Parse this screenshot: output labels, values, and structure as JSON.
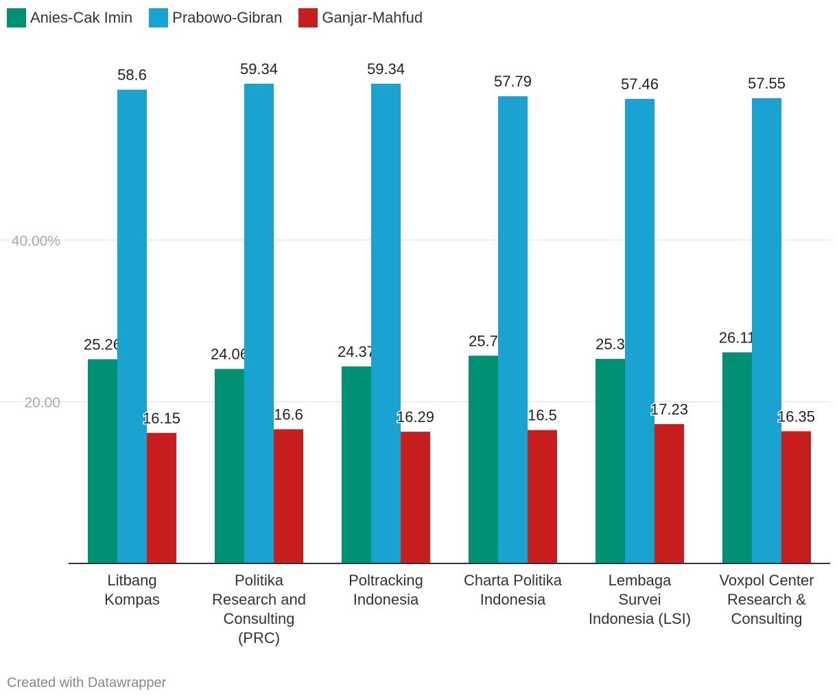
{
  "chart_data": {
    "type": "bar",
    "categories": [
      "Litbang Kompas",
      "Politika Research and Consulting (PRC)",
      "Poltracking Indonesia",
      "Charta Politika Indonesia",
      "Lembaga Survei Indonesia (LSI)",
      "Voxpol Center Research & Consulting"
    ],
    "category_lines": [
      [
        "Litbang",
        "Kompas"
      ],
      [
        "Politika",
        "Research and",
        "Consulting",
        "(PRC)"
      ],
      [
        "Poltracking",
        "Indonesia"
      ],
      [
        "Charta Politika",
        "Indonesia"
      ],
      [
        "Lembaga",
        "Survei",
        "Indonesia (LSI)"
      ],
      [
        "Voxpol Center",
        "Research &",
        "Consulting"
      ]
    ],
    "series": [
      {
        "name": "Anies-Cak Imin",
        "color": "#009174",
        "values": [
          25.26,
          24.06,
          24.37,
          25.7,
          25.3,
          26.11
        ]
      },
      {
        "name": "Prabowo-Gibran",
        "color": "#1aa2d1",
        "values": [
          58.6,
          59.34,
          59.34,
          57.79,
          57.46,
          57.55
        ]
      },
      {
        "name": "Ganjar-Mahfud",
        "color": "#c71e1d",
        "values": [
          16.15,
          16.6,
          16.29,
          16.5,
          17.23,
          16.35
        ]
      }
    ],
    "data_labels": [
      [
        "25.26",
        "24.06",
        "24.37",
        "25.7",
        "25.3",
        "26.11"
      ],
      [
        "58.6",
        "59.34",
        "59.34",
        "57.79",
        "57.46",
        "57.55"
      ],
      [
        "16.15",
        "16.6",
        "16.29",
        "16.5",
        "17.23",
        "16.35"
      ]
    ],
    "y_ticks": [
      {
        "value": 20,
        "label": "20.00"
      },
      {
        "value": 40,
        "label": "40.00%"
      }
    ],
    "ylim": [
      0,
      62
    ],
    "grid": true,
    "legend_position": "top-left"
  },
  "footer": "Created with Datawrapper"
}
